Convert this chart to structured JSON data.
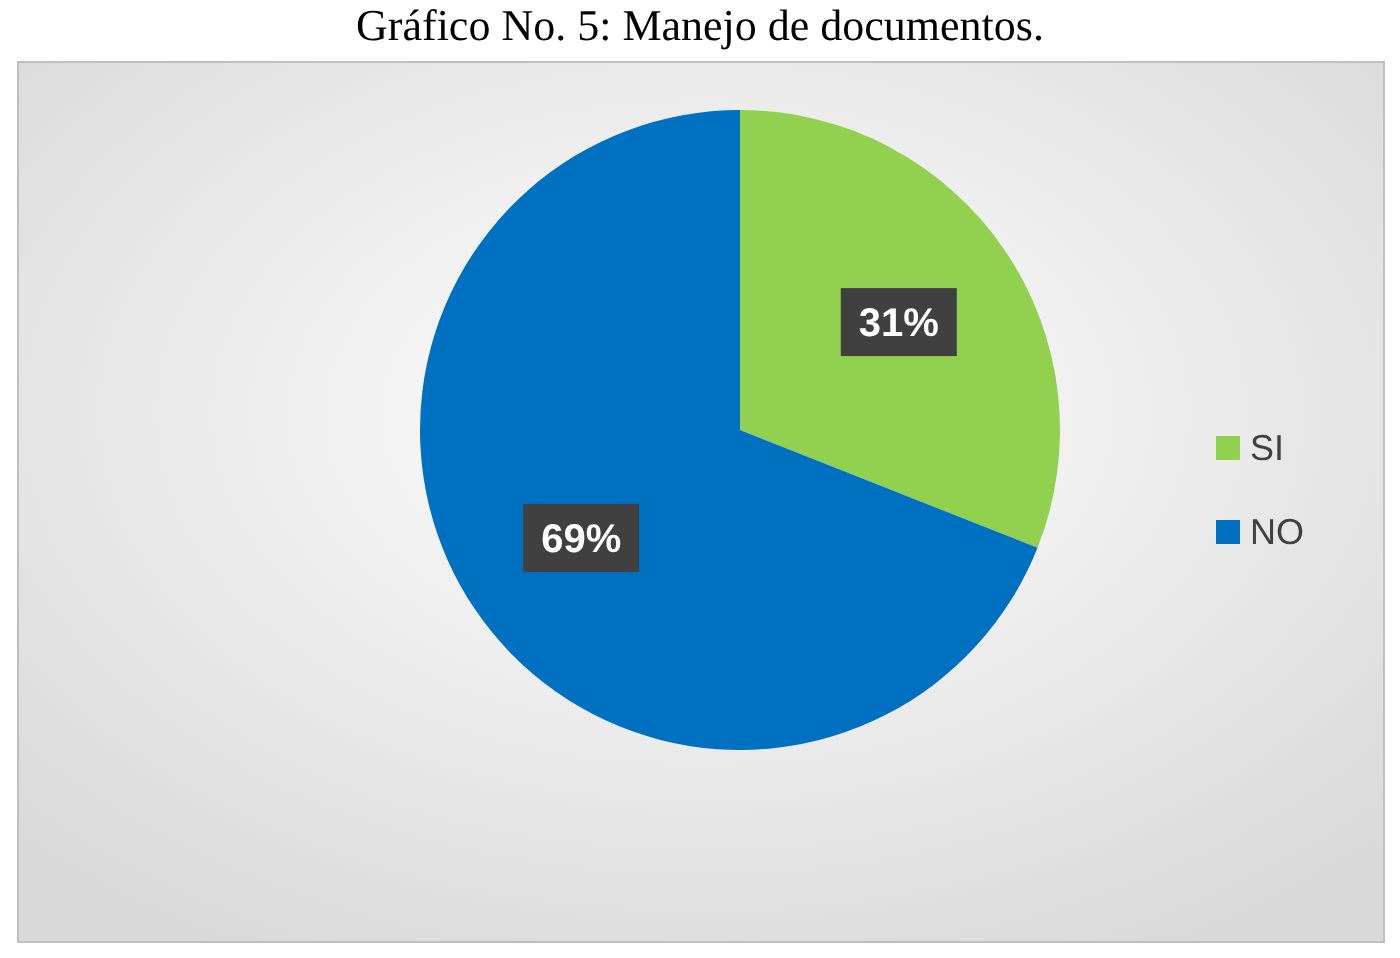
{
  "chart_data": {
    "type": "pie",
    "title": "Gráfico No. 5: Manejo de documentos.",
    "categories": [
      "SI",
      "NO"
    ],
    "values": [
      31,
      69
    ],
    "colors": [
      "#92d050",
      "#0070c0"
    ],
    "value_labels": [
      "31%",
      "69%"
    ],
    "legend": "right"
  }
}
